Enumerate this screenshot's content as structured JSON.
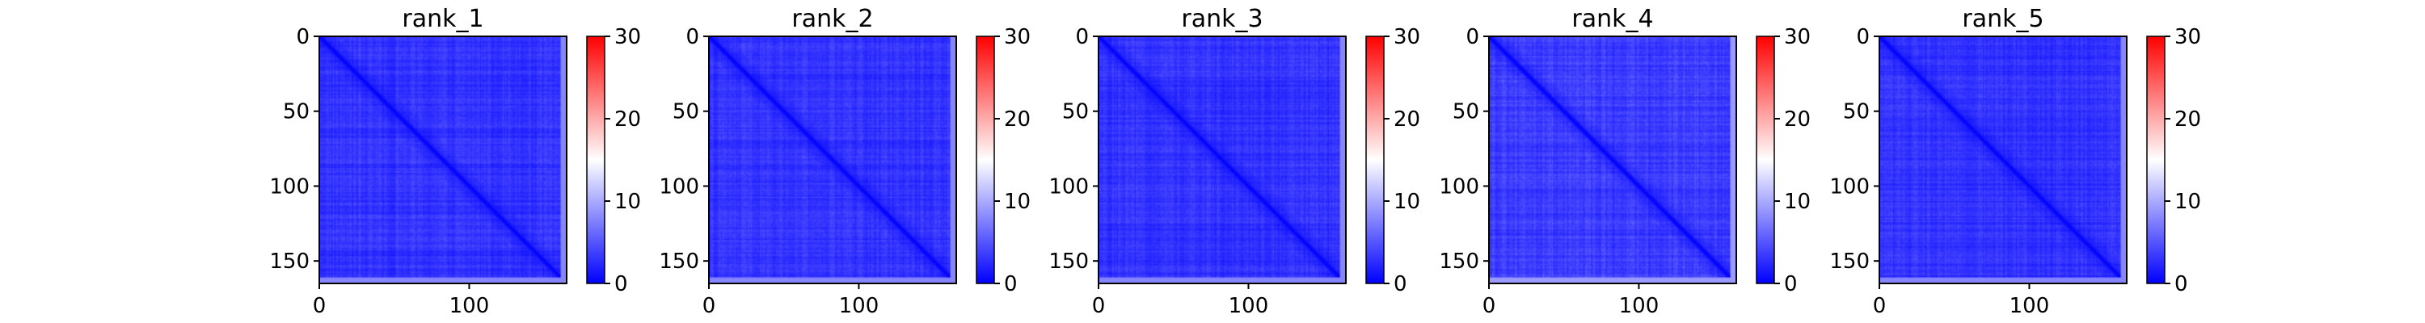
{
  "chart_data": [
    {
      "type": "heatmap",
      "title": "rank_1",
      "xlim": [
        0,
        165
      ],
      "ylim": [
        165,
        0
      ],
      "xticks": [
        0,
        100
      ],
      "yticks": [
        0,
        50,
        100,
        150
      ],
      "colorbar": {
        "range": [
          0,
          30
        ],
        "ticks": [
          0,
          10,
          20,
          30
        ],
        "colormap": "bwr"
      },
      "size": 165,
      "diagonal_value": 0,
      "typical_off_diagonal_value": 3
    },
    {
      "type": "heatmap",
      "title": "rank_2",
      "xlim": [
        0,
        165
      ],
      "ylim": [
        165,
        0
      ],
      "xticks": [
        0,
        100
      ],
      "yticks": [
        0,
        50,
        100,
        150
      ],
      "colorbar": {
        "range": [
          0,
          30
        ],
        "ticks": [
          0,
          10,
          20,
          30
        ],
        "colormap": "bwr"
      },
      "size": 165,
      "diagonal_value": 0,
      "typical_off_diagonal_value": 3
    },
    {
      "type": "heatmap",
      "title": "rank_3",
      "xlim": [
        0,
        165
      ],
      "ylim": [
        165,
        0
      ],
      "xticks": [
        0,
        100
      ],
      "yticks": [
        0,
        50,
        100,
        150
      ],
      "colorbar": {
        "range": [
          0,
          30
        ],
        "ticks": [
          0,
          10,
          20,
          30
        ],
        "colormap": "bwr"
      },
      "size": 165,
      "diagonal_value": 0,
      "typical_off_diagonal_value": 3
    },
    {
      "type": "heatmap",
      "title": "rank_4",
      "xlim": [
        0,
        165
      ],
      "ylim": [
        165,
        0
      ],
      "xticks": [
        0,
        100
      ],
      "yticks": [
        0,
        50,
        100,
        150
      ],
      "colorbar": {
        "range": [
          0,
          30
        ],
        "ticks": [
          0,
          10,
          20,
          30
        ],
        "colormap": "bwr"
      },
      "size": 165,
      "diagonal_value": 0,
      "typical_off_diagonal_value": 3.5
    },
    {
      "type": "heatmap",
      "title": "rank_5",
      "xlim": [
        0,
        165
      ],
      "ylim": [
        165,
        0
      ],
      "xticks": [
        0,
        100
      ],
      "yticks": [
        0,
        50,
        100,
        150
      ],
      "colorbar": {
        "range": [
          0,
          30
        ],
        "ticks": [
          0,
          10,
          20,
          30
        ],
        "colormap": "bwr"
      },
      "size": 165,
      "diagonal_value": 0,
      "typical_off_diagonal_value": 3
    }
  ],
  "colors": {
    "low": "#0000ff",
    "mid": "#ffffff",
    "high": "#ff0000",
    "axis": "#000000"
  }
}
